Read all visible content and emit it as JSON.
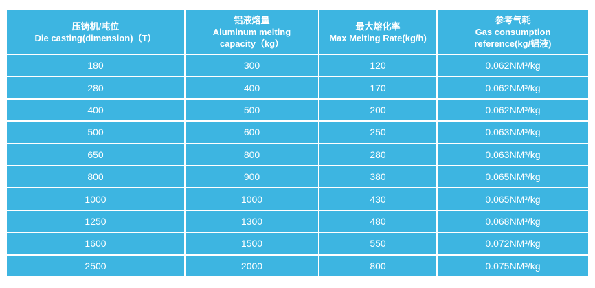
{
  "table": {
    "headers": [
      {
        "zh": "压铸机/吨位",
        "en": "Die casting(dimension)（T）"
      },
      {
        "zh": "铝液熔量",
        "en": "Aluminum melting capacity（kg）"
      },
      {
        "zh": "最大熔化率",
        "en": "Max Melting Rate(kg/h)"
      },
      {
        "zh": "参考气耗",
        "en": "Gas consumption reference(kg/铝液)"
      }
    ],
    "rows": [
      [
        "180",
        "300",
        "120",
        "0.062NM³/kg"
      ],
      [
        "280",
        "400",
        "170",
        "0.062NM³/kg"
      ],
      [
        "400",
        "500",
        "200",
        "0.062NM³/kg"
      ],
      [
        "500",
        "600",
        "250",
        "0.063NM³/kg"
      ],
      [
        "650",
        "800",
        "280",
        "0.063NM³/kg"
      ],
      [
        "800",
        "900",
        "380",
        "0.065NM³/kg"
      ],
      [
        "1000",
        "1000",
        "430",
        "0.065NM³/kg"
      ],
      [
        "1250",
        "1300",
        "480",
        "0.068NM³/kg"
      ],
      [
        "1600",
        "1500",
        "550",
        "0.072NM³/kg"
      ],
      [
        "2500",
        "2000",
        "800",
        "0.075NM³/kg"
      ]
    ]
  },
  "colors": {
    "table_background": "#3db5e1",
    "grid_lines": "#ffffff",
    "text": "#ffffff"
  }
}
